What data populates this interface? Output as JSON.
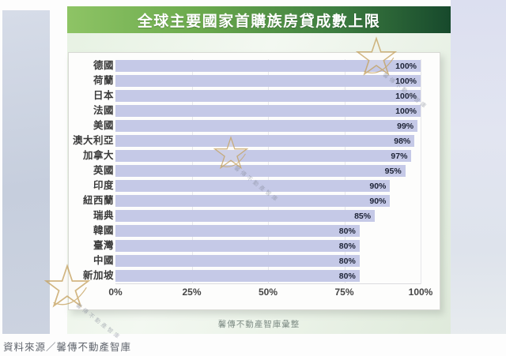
{
  "banner": {
    "title": "全球主要國家首購族房貸成數上限"
  },
  "chart_data": {
    "type": "bar",
    "orientation": "horizontal",
    "title": "全球主要國家首購族房貸成數上限",
    "categories": [
      "德國",
      "荷蘭",
      "日本",
      "法國",
      "美國",
      "澳大利亞",
      "加拿大",
      "英國",
      "印度",
      "紐西蘭",
      "瑞典",
      "韓國",
      "臺灣",
      "中國",
      "新加坡"
    ],
    "values": [
      100,
      100,
      100,
      100,
      99,
      98,
      97,
      95,
      90,
      90,
      85,
      80,
      80,
      80,
      80
    ],
    "value_labels": [
      "100%",
      "100%",
      "100%",
      "100%",
      "99%",
      "98%",
      "97%",
      "95%",
      "90%",
      "90%",
      "85%",
      "80%",
      "80%",
      "80%",
      "80%"
    ],
    "x_ticks": [
      "0%",
      "25%",
      "50%",
      "75%",
      "100%"
    ],
    "xlim": [
      0,
      100
    ],
    "xlabel": "",
    "ylabel": "",
    "grid": true,
    "legend": false,
    "bar_color": "#c5c9e7",
    "value_text_color": "#1d2336"
  },
  "caption": "馨傳不動產智庫彙整",
  "source": "資料來源／馨傳不動產智庫",
  "watermark": {
    "text": "馨傳不動產智庫"
  },
  "colors": {
    "banner_gradient_start": "#8ec465",
    "banner_gradient_end": "#17492c",
    "banner_text": "#ffffff",
    "bar": "#c5c9e7"
  }
}
